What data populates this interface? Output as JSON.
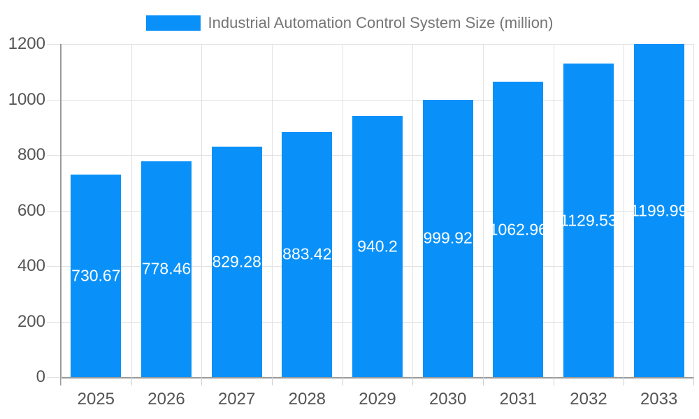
{
  "chart_data": {
    "type": "bar",
    "title": "Industrial Automation Control System Size (million)",
    "legend": [
      {
        "label": "Industrial Automation Control System Size (million)"
      }
    ],
    "legend_position": "top-center",
    "categories": [
      "2025",
      "2026",
      "2027",
      "2028",
      "2029",
      "2030",
      "2031",
      "2032",
      "2033"
    ],
    "series": [
      {
        "name": "Industrial Automation Control System Size (million)",
        "values": [
          730.67,
          778.46,
          829.28,
          883.42,
          940.2,
          999.92,
          1062.96,
          1129.53,
          1199.99
        ],
        "value_labels": [
          "730.67",
          "778.46",
          "829.28",
          "883.42",
          "940.2",
          "999.92",
          "1062.96",
          "1129.53",
          "1199.99"
        ]
      }
    ],
    "xlabel": "",
    "ylabel": "",
    "ylim": [
      0,
      1200
    ],
    "yticks": [
      0,
      200,
      400,
      600,
      800,
      1000,
      1200
    ],
    "ytick_labels": [
      "0",
      "200",
      "400",
      "600",
      "800",
      "1000",
      "1200"
    ],
    "grid": true,
    "colors": {
      "bar": "#0991f9",
      "grid": "#e2e2e2",
      "axis": "#9a9a9a",
      "tick_label": "#545454",
      "legend_text": "#757575",
      "bar_label": "#ffffff",
      "background": "#ffffff"
    }
  }
}
